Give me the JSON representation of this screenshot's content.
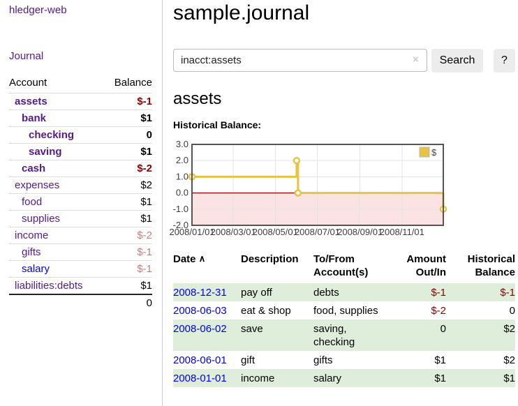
{
  "app": {
    "title": "hledger-web"
  },
  "icons": {
    "sort_asc": "∧",
    "clear": "×"
  },
  "colors": {
    "link_purple": "#551a8b",
    "link_blue": "#0000e8",
    "negative_strong": "#8b0000",
    "negative_soft": "#c17f7f",
    "row_stripe_green": "#dfeeda",
    "button_gray": "#ececec"
  },
  "sidebar": {
    "journal_link": "Journal",
    "accounts": {
      "header": {
        "account": "Account",
        "balance": "Balance"
      },
      "rows": [
        {
          "name": "assets",
          "depth": 0,
          "balance": "$-1",
          "bold": true,
          "balance_tone": "negative-strong"
        },
        {
          "name": "bank",
          "depth": 1,
          "balance": "$1",
          "bold": true,
          "balance_tone": "normal"
        },
        {
          "name": "checking",
          "depth": 2,
          "balance": "0",
          "bold": true,
          "balance_tone": "normal"
        },
        {
          "name": "saving",
          "depth": 2,
          "balance": "$1",
          "bold": true,
          "balance_tone": "normal"
        },
        {
          "name": "cash",
          "depth": 1,
          "balance": "$-2",
          "bold": true,
          "balance_tone": "negative-strong"
        },
        {
          "name": "expenses",
          "depth": 0,
          "balance": "$2",
          "bold": false,
          "balance_tone": "normal"
        },
        {
          "name": "food",
          "depth": 1,
          "balance": "$1",
          "bold": false,
          "balance_tone": "normal"
        },
        {
          "name": "supplies",
          "depth": 1,
          "balance": "$1",
          "bold": false,
          "balance_tone": "normal"
        },
        {
          "name": "income",
          "depth": 0,
          "balance": "$-2",
          "bold": false,
          "balance_tone": "negative-soft"
        },
        {
          "name": "gifts",
          "depth": 1,
          "balance": "$-1",
          "bold": false,
          "balance_tone": "negative-soft"
        },
        {
          "name": "salary",
          "depth": 1,
          "balance": "$-1",
          "bold": false,
          "balance_tone": "negative-soft",
          "link_tone": "blue"
        },
        {
          "name": "liabilities:debts",
          "depth": 0,
          "balance": "$1",
          "bold": false,
          "balance_tone": "normal"
        }
      ],
      "total": "0"
    }
  },
  "main": {
    "title": "sample.journal",
    "search": {
      "value": "inacct:assets",
      "button_label": "Search",
      "help_label": "?"
    },
    "account_heading": "assets",
    "register": {
      "headers": {
        "date": "Date",
        "description": "Description",
        "accounts": "To/From Account(s)",
        "amount": "Amount Out/In",
        "balance": "Historical Balance"
      },
      "rows": [
        {
          "date": "2008-12-31",
          "description": "pay off",
          "accounts": "debts",
          "amount": "$-1",
          "amount_tone": "negative-strong",
          "balance": "$-1",
          "balance_tone": "negative-strong"
        },
        {
          "date": "2008-06-03",
          "description": "eat & shop",
          "accounts": "food, supplies",
          "amount": "$-2",
          "amount_tone": "negative-strong",
          "balance": "0",
          "balance_tone": "normal"
        },
        {
          "date": "2008-06-02",
          "description": "save",
          "accounts": "saving, checking",
          "amount": "0",
          "amount_tone": "normal",
          "balance": "$2",
          "balance_tone": "normal"
        },
        {
          "date": "2008-06-01",
          "description": "gift",
          "accounts": "gifts",
          "amount": "$1",
          "amount_tone": "normal",
          "balance": "$2",
          "balance_tone": "normal"
        },
        {
          "date": "2008-01-01",
          "description": "income",
          "accounts": "salary",
          "amount": "$1",
          "amount_tone": "normal",
          "balance": "$1",
          "balance_tone": "normal"
        }
      ]
    }
  },
  "chart_data": {
    "type": "line",
    "title": "Historical Balance:",
    "series": [
      {
        "name": "$",
        "step": true,
        "points": [
          [
            "2008-01-01",
            1
          ],
          [
            "2008-06-01",
            2
          ],
          [
            "2008-06-03",
            0
          ],
          [
            "2008-12-31",
            -1
          ]
        ]
      }
    ],
    "x_range": [
      "2008-01-01",
      "2008-12-31"
    ],
    "ylim": [
      -2,
      3
    ],
    "y_ticks": [
      3.0,
      2.0,
      1.0,
      0.0,
      -1.0,
      -2.0
    ],
    "x_ticks": [
      {
        "date": "2008-01-01",
        "label": "2008/01/01"
      },
      {
        "date": "2008-03-01",
        "label": "2008/03/01"
      },
      {
        "date": "2008-05-01",
        "label": "2008/05/01"
      },
      {
        "date": "2008-07-01",
        "label": "2008/07/01"
      },
      {
        "date": "2008-09-01",
        "label": "2008/09/01"
      },
      {
        "date": "2008-11-01",
        "label": "2008/11/01"
      }
    ],
    "legend": {
      "label": "$",
      "position": "top-right"
    },
    "grid": true,
    "line_color": "#e8c242",
    "marker_fill": "#ffffff",
    "zero_line_color": "#8b0000",
    "negative_region_fill": "#fbe3e3",
    "border_color": "#545454",
    "grid_color": "#e3e3e3"
  }
}
